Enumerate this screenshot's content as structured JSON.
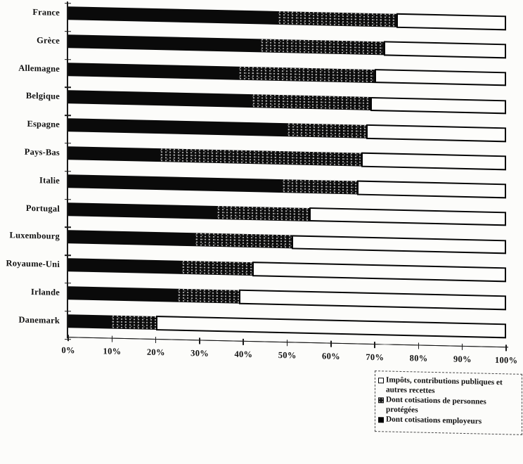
{
  "chart_data": {
    "type": "bar",
    "orientation": "horizontal",
    "stacked": true,
    "unit": "%",
    "categories": [
      "France",
      "Grèce",
      "Allemagne",
      "Belgique",
      "Espagne",
      "Pays-Bas",
      "Italie",
      "Portugal",
      "Luxembourg",
      "Royaume-Uni",
      "Irlande",
      "Danemark"
    ],
    "series": [
      {
        "name": "Dont cotisations employeurs",
        "swatch": "solid-black",
        "values": [
          48,
          44,
          39,
          42,
          50,
          21,
          49,
          34,
          29,
          26,
          25,
          10
        ]
      },
      {
        "name": "Dont cotisations de personnes protégées",
        "swatch": "dark-speckled",
        "values": [
          27,
          28,
          31,
          27,
          18,
          46,
          17,
          21,
          22,
          16,
          14,
          10
        ]
      },
      {
        "name": "Impôts, contributions publiques et autres recettes",
        "swatch": "white-outlined",
        "values": [
          25,
          28,
          30,
          31,
          32,
          33,
          34,
          45,
          49,
          58,
          61,
          80
        ]
      }
    ],
    "x_ticks": [
      "0%",
      "10%",
      "20%",
      "30%",
      "40%",
      "50%",
      "60%",
      "70%",
      "80%",
      "90%",
      "100%"
    ],
    "xlim": [
      0,
      100
    ],
    "grid": false,
    "title": "",
    "xlabel": "",
    "ylabel": "",
    "legend_position": "bottom-right",
    "legend": [
      {
        "label": "Impôts, contributions publiques et autres recettes",
        "swatch": "white-outlined"
      },
      {
        "label": "Dont cotisations de personnes protégées",
        "swatch": "dark-speckled"
      },
      {
        "label": "Dont cotisations employeurs",
        "swatch": "solid-black"
      }
    ],
    "colors": {
      "bar_black": "#0a0a0a",
      "bar_speckled": "#0c0c0c",
      "bar_white": "#fdfdfb",
      "outline": "#000000",
      "axis": "#1b1b1b",
      "background": "#fcfcfa"
    }
  }
}
